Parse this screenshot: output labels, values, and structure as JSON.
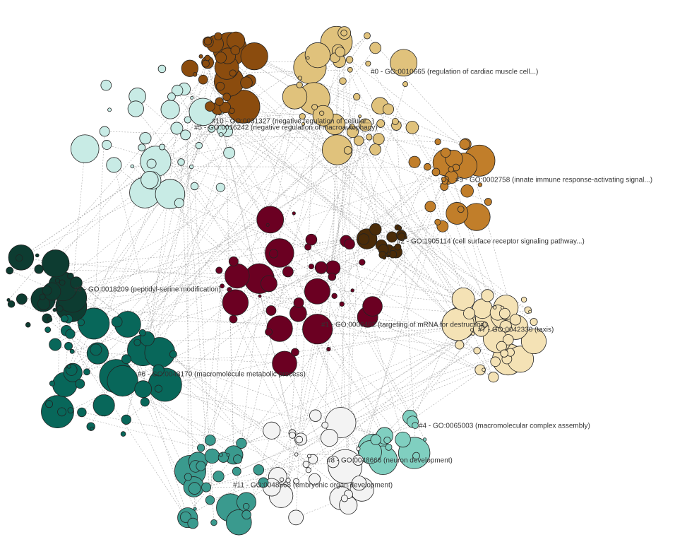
{
  "clusters": [
    {
      "label": "#0 - GO:0010665 (regulation of cardiac muscle cell...)"
    },
    {
      "label": "#10 - GO:0031327 (negative regulation of cellular...)"
    },
    {
      "label": "#5 - GO:0016242 (negative regulation of macroautophagy)"
    },
    {
      "label": "#9 - GO:0002758 (innate immune response-activating signal...)"
    },
    {
      "label": "#2 - GO:1905114 (cell surface receptor signaling pathway...)"
    },
    {
      "label": "#3 - GO:0018209 (peptidyl-serine modification)"
    },
    {
      "label": "#1 - GO:0006402 (targeting of mRNA for destruction)"
    },
    {
      "label": "#7 - GO:0042330 (taxis)"
    },
    {
      "label": "#6 - GO:0043170 (macromolecule metabolic process)"
    },
    {
      "label": "#4 - GO:0065003 (macromolecular complex assembly)"
    },
    {
      "label": "#8 - GO:0048666 (neuron development)"
    },
    {
      "label": "#11 - GO:0048568 (embryonic organ development)"
    }
  ]
}
